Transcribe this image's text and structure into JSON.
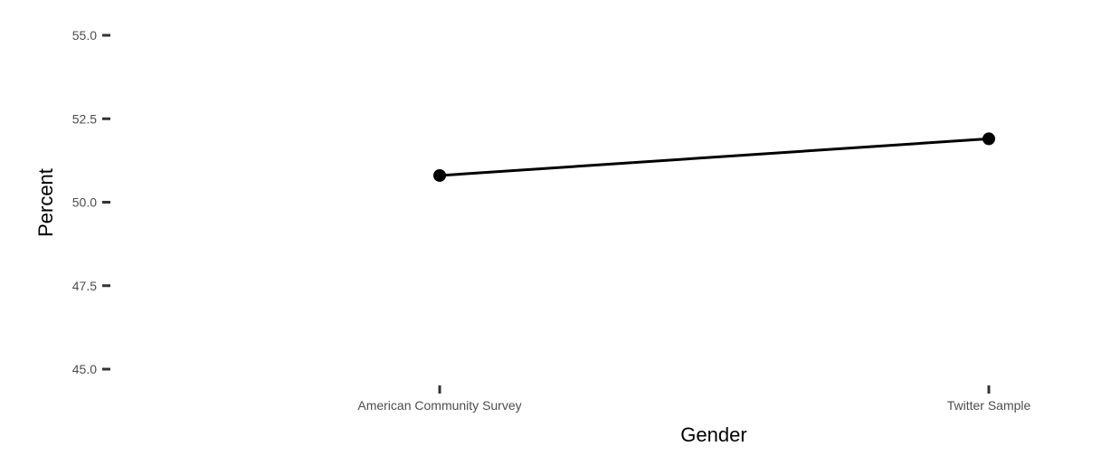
{
  "chart_data": {
    "type": "line",
    "categories": [
      "American Community Survey",
      "Twitter Sample"
    ],
    "values": [
      50.8,
      51.9
    ],
    "xlabel": "Gender",
    "ylabel": "Percent",
    "ylim": [
      45.0,
      55.0
    ],
    "yticks": [
      "45.0",
      "47.5",
      "50.0",
      "52.5",
      "55.0"
    ],
    "grid": false,
    "line_color": "#000000",
    "tick_color": "#333333"
  }
}
